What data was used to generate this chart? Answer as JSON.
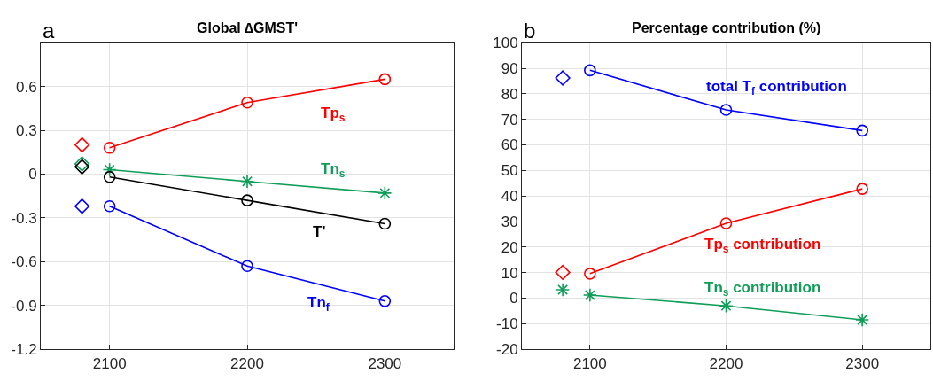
{
  "chart_data": [
    {
      "type": "line",
      "title": "Global ∆GMST'",
      "xlim": [
        2050,
        2350
      ],
      "xticks": [
        2100,
        2200,
        2300
      ],
      "ylim": [
        -1.2,
        0.9
      ],
      "yticks": [
        -1.2,
        -0.9,
        -0.6,
        -0.3,
        0,
        0.3,
        0.6
      ],
      "grid": true,
      "line_style": "solid",
      "series": [
        {
          "name": "Tp$_{s}$",
          "color": "#ff0000",
          "x": [
            2100,
            2200,
            2300
          ],
          "values": [
            0.18,
            0.49,
            0.65
          ],
          "marker": "circle"
        },
        {
          "name": "Tn$_{s}$",
          "color": "#0f9d58",
          "x": [
            2100,
            2200,
            2300
          ],
          "values": [
            0.03,
            -0.05,
            -0.13
          ],
          "marker": "cross"
        },
        {
          "name": "T'",
          "color": "#000000",
          "x": [
            2100,
            2200,
            2300
          ],
          "values": [
            -0.02,
            -0.18,
            -0.34
          ],
          "marker": "circle"
        },
        {
          "name": "Tn$_{f}$",
          "color": "#0000ff",
          "x": [
            2100,
            2200,
            2300
          ],
          "values": [
            -0.22,
            -0.63,
            -0.87
          ],
          "marker": "circle"
        },
        {
          "type": "scatter",
          "color": "#ff0000",
          "x": [
            2080
          ],
          "values": [
            0.2
          ],
          "marker": "diamond"
        },
        {
          "type": "scatter",
          "color": "#0f9d58",
          "x": [
            2080
          ],
          "values": [
            0.07
          ],
          "marker": "diamond"
        },
        {
          "type": "scatter",
          "color": "#000000",
          "x": [
            2080
          ],
          "values": [
            0.05
          ],
          "marker": "diamond"
        },
        {
          "type": "scatter",
          "color": "#0000ff",
          "x": [
            2080
          ],
          "values": [
            -0.22
          ],
          "marker": "diamond"
        }
      ],
      "annotations": [
        "a"
      ]
    },
    {
      "type": "line",
      "title": "Percentage contribution (%)",
      "xlim": [
        2050,
        2350
      ],
      "xticks": [
        2100,
        2200,
        2300
      ],
      "ylim": [
        -20,
        100
      ],
      "yticks": [
        -20,
        -10,
        0,
        10,
        20,
        30,
        40,
        50,
        60,
        70,
        80,
        90,
        100
      ],
      "grid": true,
      "line_style": "solid",
      "series": [
        {
          "name": "total T$_{f}$ contribution",
          "color": "#0000ff",
          "x": [
            2100,
            2200,
            2300
          ],
          "values": [
            89.2,
            73.7,
            65.6
          ],
          "marker": "circle"
        },
        {
          "name": "Tp$_{s}$ contribution",
          "color": "#ff0000",
          "x": [
            2100,
            2200,
            2300
          ],
          "values": [
            9.6,
            29.3,
            42.8
          ],
          "marker": "circle"
        },
        {
          "name": "Tn$_{s}$ contribution",
          "color": "#0f9d58",
          "x": [
            2100,
            2200,
            2300
          ],
          "values": [
            1.2,
            -3.0,
            -8.5
          ],
          "marker": "cross"
        },
        {
          "type": "scatter",
          "color": "#0000ff",
          "x": [
            2080
          ],
          "values": [
            86.2
          ],
          "marker": "diamond"
        },
        {
          "type": "scatter",
          "color": "#ff0000",
          "x": [
            2080
          ],
          "values": [
            10.1
          ],
          "marker": "diamond"
        },
        {
          "type": "scatter",
          "color": "#0f9d58",
          "x": [
            2080
          ],
          "values": [
            3.3
          ],
          "marker": "cross"
        }
      ],
      "annotations": [
        "b"
      ]
    }
  ]
}
